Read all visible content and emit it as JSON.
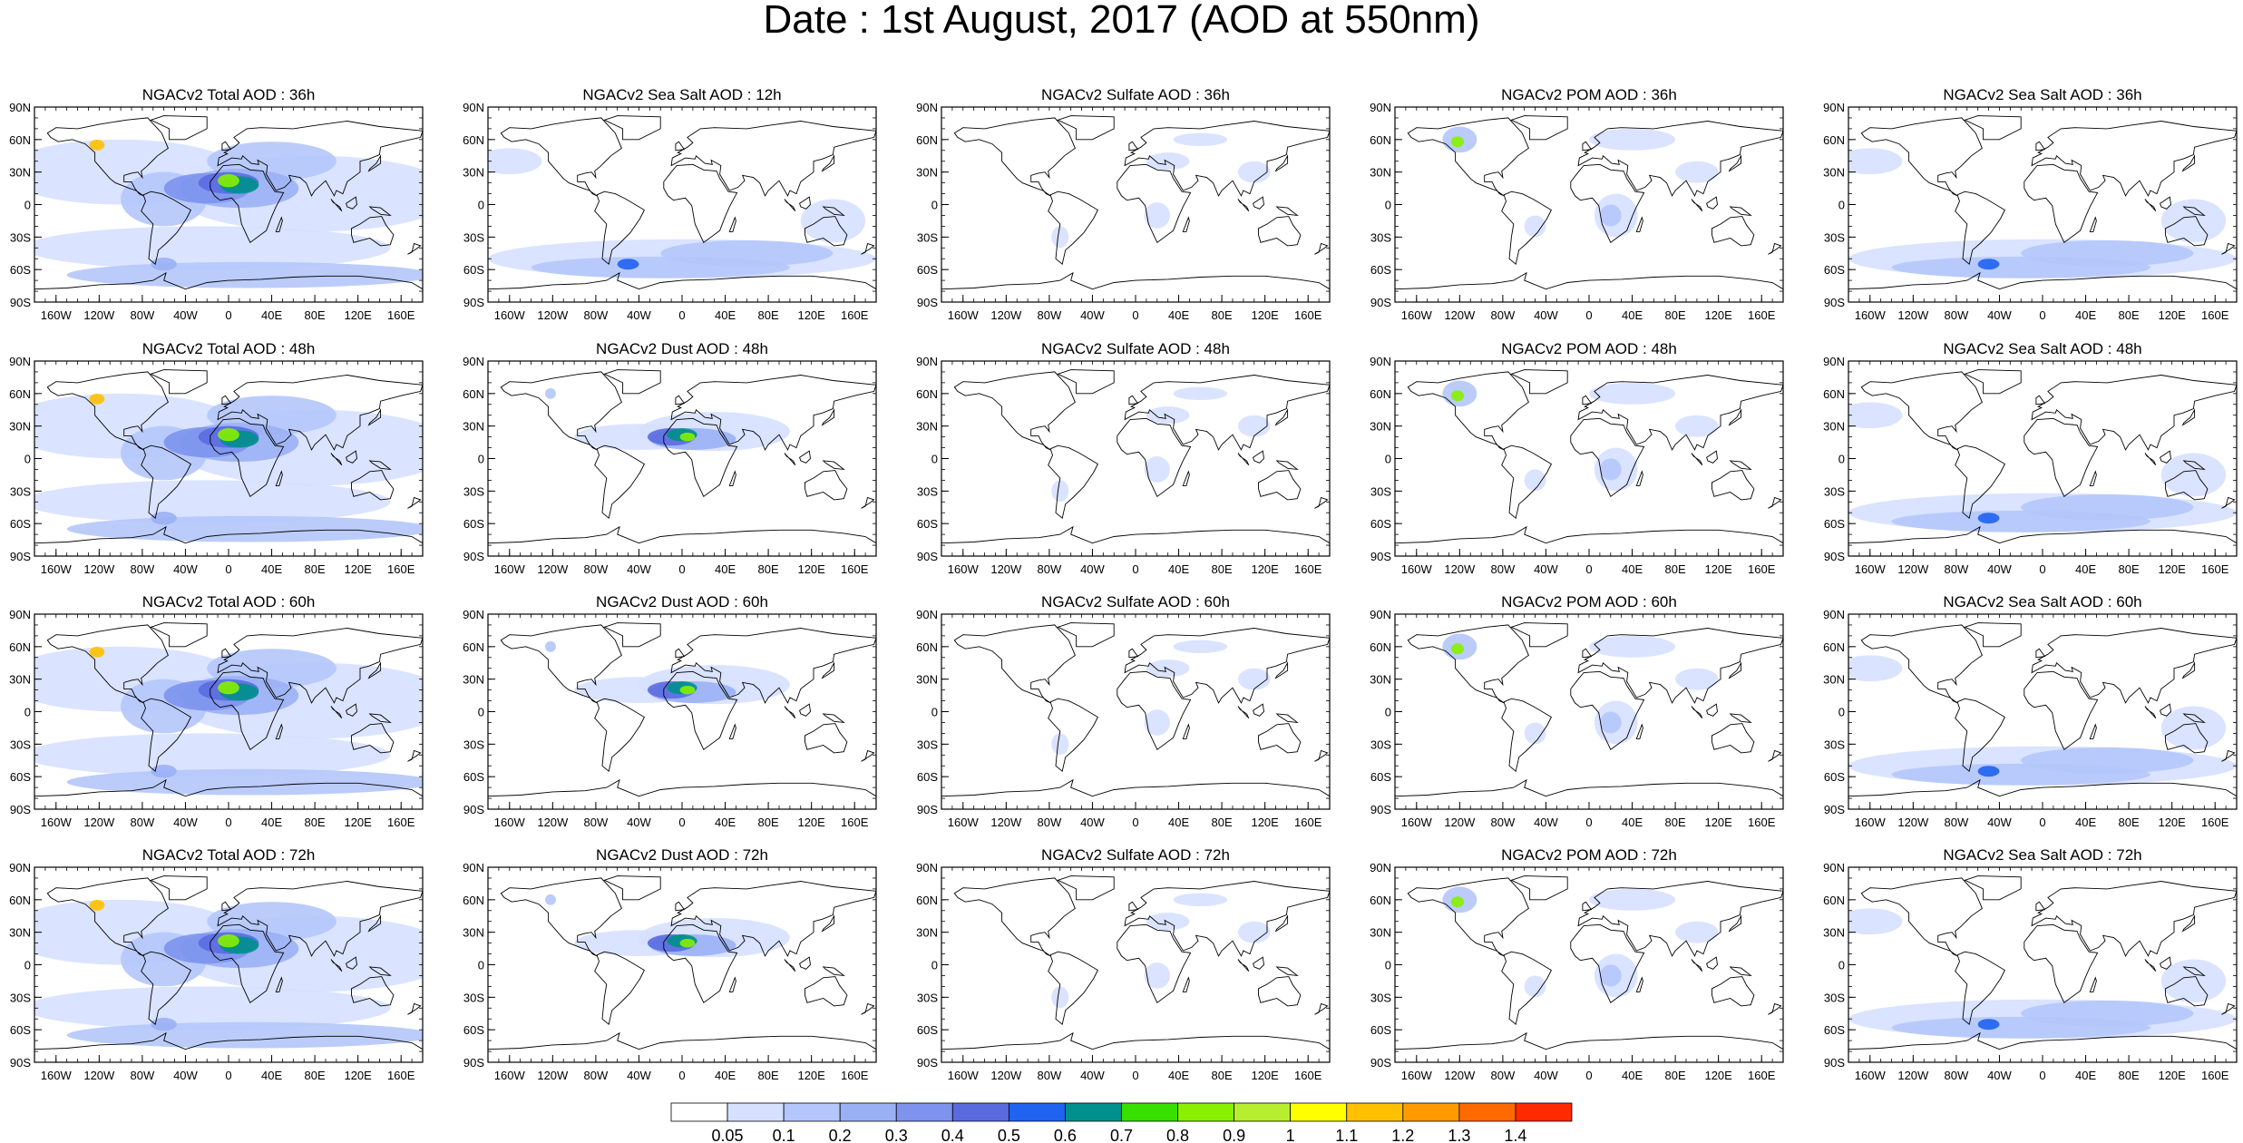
{
  "title": "Date : 1st August, 2017 (AOD at 550nm)",
  "map": {
    "lat_ticks": [
      "90N",
      "60N",
      "30N",
      "0",
      "30S",
      "60S",
      "90S"
    ],
    "lon_ticks": [
      "160W",
      "120W",
      "80W",
      "40W",
      "0",
      "40E",
      "80E",
      "120E",
      "160E"
    ]
  },
  "panels": [
    [
      "NGACv2 Total AOD : 36h",
      "NGACv2 Sea Salt  AOD : 12h",
      "NGACv2 Sulfate AOD : 36h",
      "NGACv2 POM AOD : 36h",
      "NGACv2 Sea Salt AOD : 36h"
    ],
    [
      "NGACv2 Total AOD : 48h",
      "NGACv2 Dust AOD : 48h",
      "NGACv2 Sulfate AOD : 48h",
      "NGACv2 POM AOD : 48h",
      "NGACv2 Sea Salt AOD : 48h"
    ],
    [
      "NGACv2 Total AOD : 60h",
      "NGACv2 Dust AOD : 60h",
      "NGACv2 Sulfate AOD : 60h",
      "NGACv2 POM AOD : 60h",
      "NGACv2 Sea Salt AOD : 60h"
    ],
    [
      "NGACv2 Total AOD : 72h",
      "NGACv2 Dust AOD : 72h",
      "NGACv2 Sulfate AOD : 72h",
      "NGACv2 POM AOD : 72h",
      "NGACv2 Sea Salt  AOD : 72h"
    ]
  ],
  "colorbar": {
    "labels": [
      "0.05",
      "0.1",
      "0.2",
      "0.3",
      "0.4",
      "0.5",
      "0.6",
      "0.7",
      "0.8",
      "0.9",
      "1",
      "1.1",
      "1.2",
      "1.3",
      "1.4"
    ],
    "colors": [
      "#ffffff",
      "#d6e0ff",
      "#b4c6fb",
      "#9ab0f5",
      "#7d93ee",
      "#5a6be0",
      "#1f63f0",
      "#00908c",
      "#38e000",
      "#88f000",
      "#b8ee30",
      "#ffff00",
      "#ffc000",
      "#ff9a00",
      "#ff6a00",
      "#ff2a00"
    ]
  }
}
